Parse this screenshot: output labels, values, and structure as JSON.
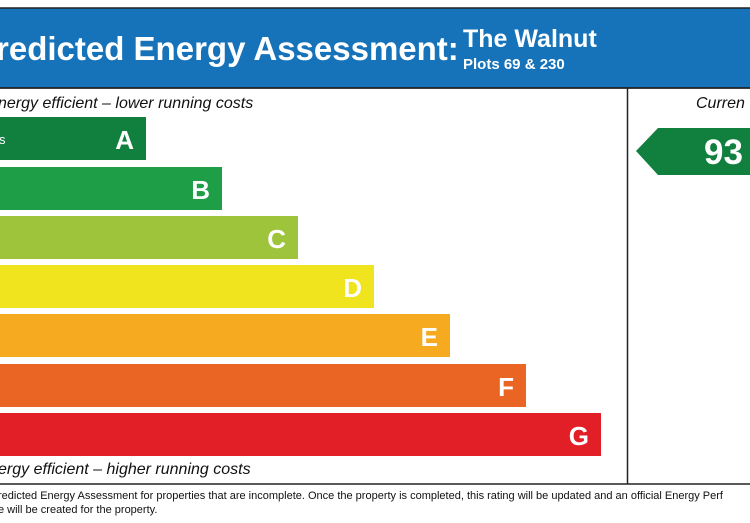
{
  "header": {
    "title": "redicted Energy Assessment:",
    "property": "The Walnut",
    "plots": "Plots 69 & 230"
  },
  "scale": {
    "top_label": "nergy efficient – lower running costs",
    "bottom_label": "ergy efficient – higher running costs",
    "bands": [
      {
        "letter": "A",
        "note": "s",
        "color": "#11803f"
      },
      {
        "letter": "B",
        "color": "#1f9e48"
      },
      {
        "letter": "C",
        "color": "#9dc43b"
      },
      {
        "letter": "D",
        "color": "#f0e41e"
      },
      {
        "letter": "E",
        "color": "#f6aa1f"
      },
      {
        "letter": "F",
        "color": "#ea6524"
      },
      {
        "letter": "G",
        "color": "#e21f26"
      }
    ]
  },
  "current": {
    "label": "Curren",
    "rating": "93",
    "color": "#11803f"
  },
  "footer": {
    "line1": "redicted Energy Assessment for properties that are incomplete. Once the property is completed, this rating will be updated and an official Energy Perf",
    "line2": "e will be created for the property."
  }
}
